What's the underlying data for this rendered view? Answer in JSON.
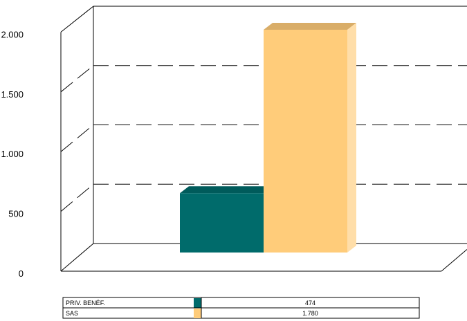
{
  "chart_data": {
    "type": "bar",
    "categories": [
      "PRIV. BENÉF.",
      "SAS"
    ],
    "values": [
      474,
      1780
    ],
    "value_labels": [
      "474",
      "1.780"
    ],
    "colors": {
      "PRIV. BENÉF.": "#006B6B",
      "SAS": "#FFCC7A"
    },
    "ylim": [
      0,
      2000
    ],
    "yticks": [
      {
        "value": 0,
        "label": "0"
      },
      {
        "value": 500,
        "label": "500"
      },
      {
        "value": 1000,
        "label": "1.000"
      },
      {
        "value": 1500,
        "label": "1.500"
      },
      {
        "value": 2000,
        "label": "2.000"
      }
    ],
    "grid": true,
    "legend": "data table below chart",
    "title": "",
    "xlabel": "",
    "ylabel": ""
  }
}
